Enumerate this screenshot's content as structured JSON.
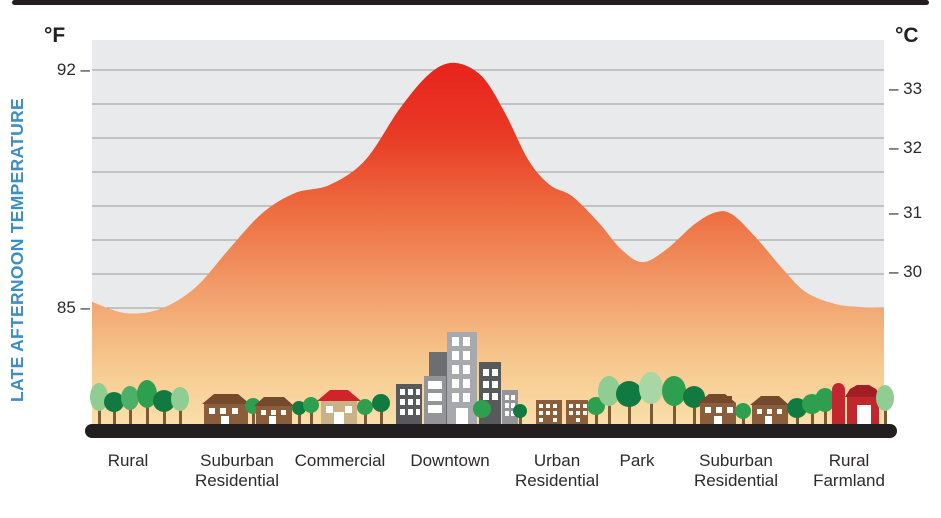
{
  "y_axis_title": "LATE AFTERNOON TEMPERATURE",
  "axes": {
    "fahrenheit": {
      "unit": "°F",
      "ticks": [
        {
          "label": "92 –"
        },
        {
          "label": "85 –"
        }
      ]
    },
    "celsius": {
      "unit": "°C",
      "ticks": [
        {
          "label": "– 33"
        },
        {
          "label": "– 32"
        },
        {
          "label": "– 31"
        },
        {
          "label": "– 30"
        }
      ]
    }
  },
  "categories": [
    {
      "line1": "Rural",
      "line2": ""
    },
    {
      "line1": "Suburban",
      "line2": "Residential"
    },
    {
      "line1": "Commercial",
      "line2": ""
    },
    {
      "line1": "Downtown",
      "line2": ""
    },
    {
      "line1": "Urban",
      "line2": "Residential"
    },
    {
      "line1": "Park",
      "line2": ""
    },
    {
      "line1": "Suburban",
      "line2": "Residential"
    },
    {
      "line1": "Rural",
      "line2": "Farmland"
    }
  ],
  "colors": {
    "accent_blue": "#3e8ec6",
    "peak_red": "#e8231d",
    "mid_orange": "#ee6f42",
    "base_cream": "#fadfa9",
    "plot_background": "#e9eaeb",
    "gridline": "#97999c",
    "ground_black": "#231f20",
    "text": "#2d2a2b"
  },
  "chart_data": {
    "type": "area",
    "title": "",
    "ylabel": "LATE AFTERNOON TEMPERATURE",
    "categories": [
      "Rural",
      "Suburban Residential",
      "Commercial",
      "Downtown",
      "Urban Residential",
      "Park",
      "Suburban Residential",
      "Rural Farmland"
    ],
    "values_f": [
      85.0,
      86.6,
      88.7,
      92.2,
      88.5,
      86.4,
      88.2,
      85.1
    ],
    "y_axis_left": {
      "unit": "°F",
      "ticks": [
        92,
        85
      ]
    },
    "y_axis_right": {
      "unit": "°C",
      "ticks": [
        33,
        32,
        31,
        30
      ]
    },
    "ylim_f": [
      84.1,
      92.9
    ],
    "grid": true,
    "legend": false,
    "gradient": [
      [
        0,
        "#e8231d"
      ],
      [
        0.2,
        "#e93a25"
      ],
      [
        0.42,
        "#ee6f42"
      ],
      [
        0.62,
        "#f29c69"
      ],
      [
        0.82,
        "#f6c78d"
      ],
      [
        1,
        "#fadfa9"
      ]
    ],
    "profile": [
      [
        0.0,
        85.18
      ],
      [
        0.042,
        84.85
      ],
      [
        0.086,
        84.97
      ],
      [
        0.13,
        85.59
      ],
      [
        0.174,
        86.76
      ],
      [
        0.215,
        87.79
      ],
      [
        0.256,
        88.38
      ],
      [
        0.3,
        88.62
      ],
      [
        0.345,
        89.35
      ],
      [
        0.389,
        90.88
      ],
      [
        0.427,
        91.91
      ],
      [
        0.458,
        92.21
      ],
      [
        0.492,
        91.82
      ],
      [
        0.521,
        90.76
      ],
      [
        0.551,
        89.35
      ],
      [
        0.578,
        88.62
      ],
      [
        0.606,
        88.29
      ],
      [
        0.639,
        87.53
      ],
      [
        0.669,
        86.71
      ],
      [
        0.696,
        86.35
      ],
      [
        0.727,
        86.76
      ],
      [
        0.761,
        87.47
      ],
      [
        0.788,
        87.82
      ],
      [
        0.809,
        87.74
      ],
      [
        0.841,
        87.0
      ],
      [
        0.871,
        86.18
      ],
      [
        0.901,
        85.47
      ],
      [
        0.938,
        85.12
      ],
      [
        0.97,
        85.03
      ],
      [
        1.0,
        85.0
      ]
    ]
  }
}
